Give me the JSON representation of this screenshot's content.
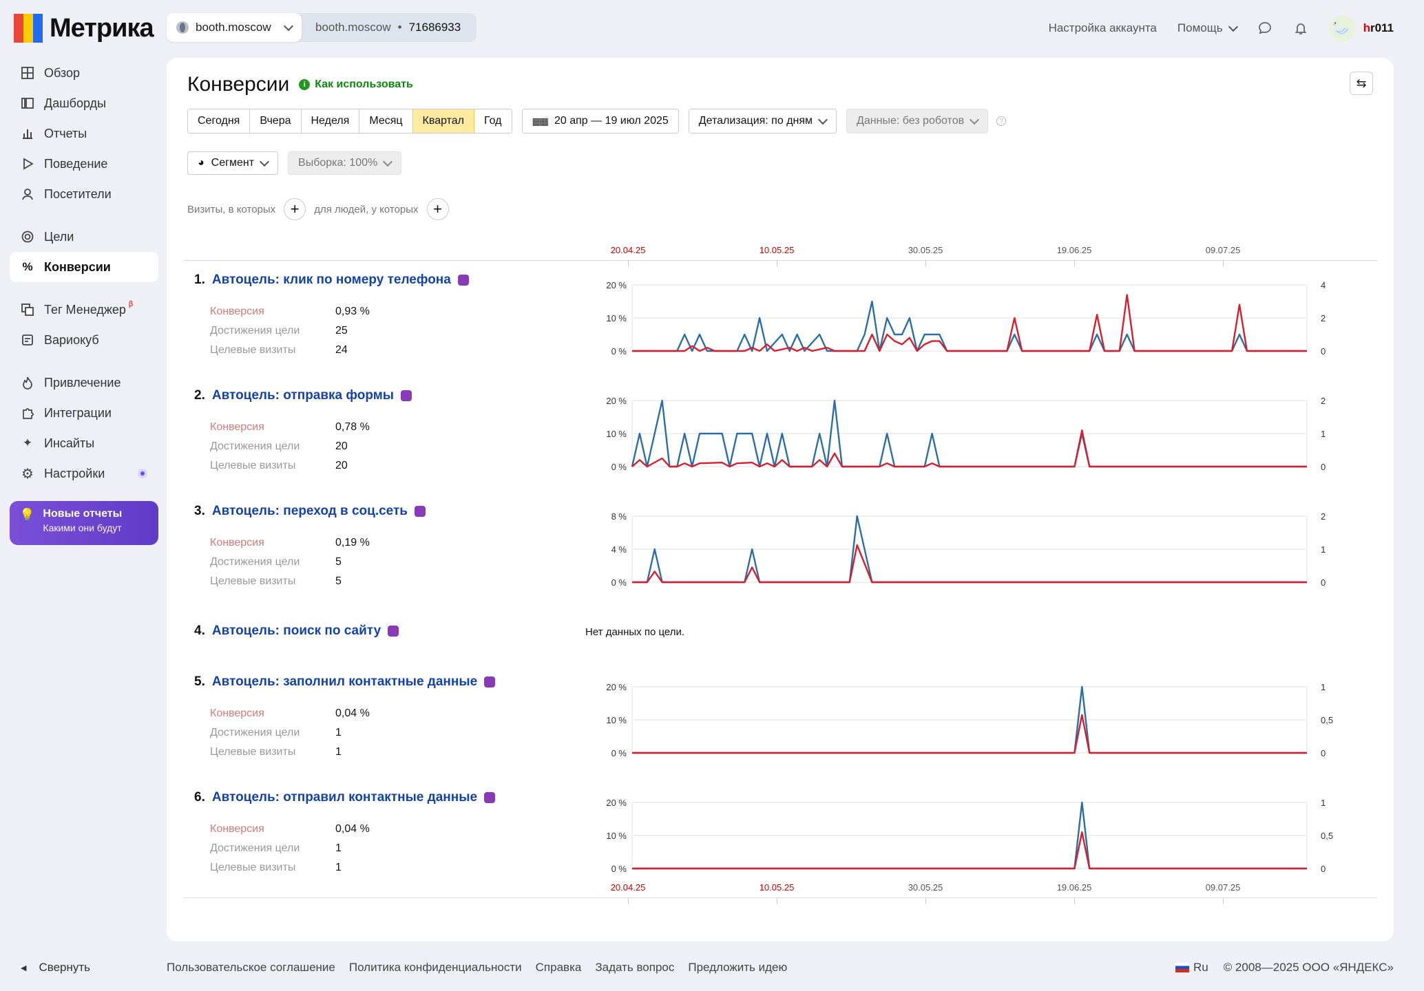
{
  "brand": {
    "logo_text": "Метрика"
  },
  "counter": {
    "selected": "booth.moscow",
    "site": "booth.moscow",
    "separator": "•",
    "id": "71686933"
  },
  "header": {
    "account_settings": "Настройка аккаунта",
    "help": "Помощь",
    "user_prefix": "h",
    "user_rest": "r011"
  },
  "sidebar": {
    "items": [
      {
        "label": "Обзор",
        "icon": "grid-icon"
      },
      {
        "label": "Дашборды",
        "icon": "dashboard-icon"
      },
      {
        "label": "Отчеты",
        "icon": "bar-chart-icon"
      },
      {
        "label": "Поведение",
        "icon": "play-icon"
      },
      {
        "label": "Посетители",
        "icon": "person-icon"
      },
      {
        "label": "Цели",
        "icon": "target-icon"
      },
      {
        "label": "Конверсии",
        "icon": "percent-icon"
      },
      {
        "label": "Тег Менеджер",
        "icon": "tag-manager-icon",
        "badge": "β"
      },
      {
        "label": "Вариокуб",
        "icon": "cube-icon"
      },
      {
        "label": "Привлечение",
        "icon": "fire-icon"
      },
      {
        "label": "Интеграции",
        "icon": "puzzle-icon"
      },
      {
        "label": "Инсайты",
        "icon": "sparkle-icon"
      },
      {
        "label": "Настройки",
        "icon": "gear-icon"
      }
    ],
    "promo": {
      "title": "Новые отчеты",
      "subtitle": "Какими они будут"
    },
    "collapse": "Свернуть"
  },
  "main": {
    "title": "Конверсии",
    "how_to": "Как использовать",
    "periods": [
      "Сегодня",
      "Вчера",
      "Неделя",
      "Месяц",
      "Квартал",
      "Год"
    ],
    "selected_period": "Квартал",
    "date_range": "20 апр — 19 июл 2025",
    "detail": "Детализация: по дням",
    "data_filter": "Данные: без роботов",
    "segment": "Сегмент",
    "sample": "Выборка: 100%",
    "visits_label": "Визиты, в которых",
    "people_label": "для людей, у которых",
    "dates": [
      "20.04.25",
      "10.05.25",
      "30.05.25",
      "19.06.25",
      "09.07.25"
    ],
    "no_data": "Нет данных по цели.",
    "metric_labels": [
      "Конверсия",
      "Достижения цели",
      "Целевые визиты"
    ]
  },
  "colors": {
    "conversion_line": "#d81e2c",
    "visits_line": "#2b6ea6",
    "accent": "#1443a8",
    "selected_period_bg": "#ffeba0"
  },
  "goals": [
    {
      "num": "1.",
      "title": "Автоцель: клик по номеру телефона",
      "icon": "phone-icon",
      "conversion": "0,93 %",
      "achievements": "25",
      "visits": "24",
      "left_ticks": [
        "20 %",
        "10 %",
        "0 %"
      ],
      "right_ticks": [
        "4",
        "2",
        "0"
      ]
    },
    {
      "num": "2.",
      "title": "Автоцель: отправка формы",
      "icon": "form-icon",
      "conversion": "0,78 %",
      "achievements": "20",
      "visits": "20",
      "left_ticks": [
        "20 %",
        "10 %",
        "0 %"
      ],
      "right_ticks": [
        "2",
        "1",
        "0"
      ]
    },
    {
      "num": "3.",
      "title": "Автоцель: переход в соц.сеть",
      "icon": "social-icon",
      "conversion": "0,19 %",
      "achievements": "5",
      "visits": "5",
      "left_ticks": [
        "8 %",
        "4 %",
        "0 %"
      ],
      "right_ticks": [
        "2",
        "1",
        "0"
      ]
    },
    {
      "num": "4.",
      "title": "Автоцель: поиск по сайту",
      "icon": "search-icon"
    },
    {
      "num": "5.",
      "title": "Автоцель: заполнил контактные данные",
      "icon": "contact-icon",
      "conversion": "0,04 %",
      "achievements": "1",
      "visits": "1",
      "left_ticks": [
        "20 %",
        "10 %",
        "0 %"
      ],
      "right_ticks": [
        "1",
        "0,5",
        "0"
      ]
    },
    {
      "num": "6.",
      "title": "Автоцель: отправил контактные данные",
      "icon": "contact-icon",
      "conversion": "0,04 %",
      "achievements": "1",
      "visits": "1",
      "left_ticks": [
        "20 %",
        "10 %",
        "0 %"
      ],
      "right_ticks": [
        "1",
        "0,5",
        "0"
      ]
    }
  ],
  "chart_data": [
    {
      "type": "line",
      "title": "Автоцель: клик по номеру телефона",
      "ylim": [
        0,
        20
      ],
      "y2lim": [
        0,
        4
      ],
      "x_start": "20.04.25",
      "days": 91,
      "series": [
        {
          "name": "Конверсия",
          "axis": "left",
          "points": [
            [
              7,
              0
            ],
            [
              8,
              1.5
            ],
            [
              9,
              0
            ],
            [
              10,
              1
            ],
            [
              11,
              0
            ],
            [
              15,
              0
            ],
            [
              16,
              1
            ],
            [
              17,
              0
            ],
            [
              18,
              2
            ],
            [
              19,
              0
            ],
            [
              21,
              1
            ],
            [
              22,
              0
            ],
            [
              23,
              1
            ],
            [
              24,
              0
            ],
            [
              26,
              1
            ],
            [
              27,
              0
            ],
            [
              31,
              0
            ],
            [
              32,
              5
            ],
            [
              33,
              0
            ],
            [
              34,
              5
            ],
            [
              35,
              3
            ],
            [
              36,
              2
            ],
            [
              37,
              4
            ],
            [
              38,
              0
            ],
            [
              39,
              2
            ],
            [
              40,
              3
            ],
            [
              41,
              3
            ],
            [
              42,
              0
            ],
            [
              50,
              0
            ],
            [
              51,
              10
            ],
            [
              52,
              0
            ],
            [
              61,
              0
            ],
            [
              62,
              11
            ],
            [
              63,
              0
            ],
            [
              65,
              0
            ],
            [
              66,
              17
            ],
            [
              67,
              0
            ],
            [
              80,
              0
            ],
            [
              81,
              14
            ],
            [
              82,
              0
            ]
          ]
        },
        {
          "name": "Целевые визиты",
          "axis": "right",
          "points": [
            [
              6,
              0
            ],
            [
              7,
              1
            ],
            [
              8,
              0
            ],
            [
              9,
              1
            ],
            [
              10,
              0
            ],
            [
              14,
              0
            ],
            [
              15,
              1
            ],
            [
              16,
              0
            ],
            [
              17,
              2
            ],
            [
              18,
              0
            ],
            [
              20,
              1
            ],
            [
              21,
              0
            ],
            [
              22,
              1
            ],
            [
              23,
              0
            ],
            [
              25,
              1
            ],
            [
              26,
              0
            ],
            [
              30,
              0
            ],
            [
              31,
              1
            ],
            [
              32,
              3
            ],
            [
              33,
              0
            ],
            [
              34,
              2
            ],
            [
              35,
              1
            ],
            [
              36,
              1
            ],
            [
              37,
              2
            ],
            [
              38,
              0
            ],
            [
              39,
              1
            ],
            [
              40,
              1
            ],
            [
              41,
              1
            ],
            [
              42,
              0
            ],
            [
              50,
              0
            ],
            [
              51,
              1
            ],
            [
              52,
              0
            ],
            [
              61,
              0
            ],
            [
              62,
              1
            ],
            [
              63,
              0
            ],
            [
              65,
              0
            ],
            [
              66,
              1
            ],
            [
              67,
              0
            ],
            [
              80,
              0
            ],
            [
              81,
              1
            ],
            [
              82,
              0
            ]
          ]
        }
      ]
    },
    {
      "type": "line",
      "title": "Автоцель: отправка формы",
      "ylim": [
        0,
        20
      ],
      "y2lim": [
        0,
        2
      ],
      "x_start": "20.04.25",
      "days": 91,
      "series": [
        {
          "name": "Конверсия",
          "axis": "left",
          "points": [
            [
              0,
              0
            ],
            [
              1,
              2
            ],
            [
              2,
              0
            ],
            [
              4,
              2.5
            ],
            [
              5,
              0
            ],
            [
              6,
              0
            ],
            [
              7,
              1
            ],
            [
              8,
              0
            ],
            [
              9,
              1
            ],
            [
              12,
              1.2
            ],
            [
              13,
              0
            ],
            [
              14,
              1
            ],
            [
              16,
              1.2
            ],
            [
              17,
              0
            ],
            [
              18,
              1
            ],
            [
              19,
              0
            ],
            [
              20,
              2
            ],
            [
              21,
              0
            ],
            [
              24,
              0
            ],
            [
              25,
              2
            ],
            [
              26,
              0
            ],
            [
              27,
              4
            ],
            [
              28,
              0
            ],
            [
              33,
              0
            ],
            [
              34,
              1
            ],
            [
              35,
              0
            ],
            [
              39,
              0
            ],
            [
              40,
              1
            ],
            [
              41,
              0
            ],
            [
              59,
              0
            ],
            [
              60,
              11
            ],
            [
              61,
              0
            ]
          ]
        },
        {
          "name": "Целевые визиты",
          "axis": "right",
          "points": [
            [
              0,
              0
            ],
            [
              1,
              1
            ],
            [
              2,
              0
            ],
            [
              4,
              2
            ],
            [
              5,
              0
            ],
            [
              6,
              0
            ],
            [
              7,
              1
            ],
            [
              8,
              0
            ],
            [
              9,
              1
            ],
            [
              12,
              1
            ],
            [
              13,
              0
            ],
            [
              14,
              1
            ],
            [
              16,
              1
            ],
            [
              17,
              0
            ],
            [
              18,
              1
            ],
            [
              19,
              0
            ],
            [
              20,
              1
            ],
            [
              21,
              0
            ],
            [
              24,
              0
            ],
            [
              25,
              1
            ],
            [
              26,
              0
            ],
            [
              27,
              2
            ],
            [
              28,
              0
            ],
            [
              33,
              0
            ],
            [
              34,
              1
            ],
            [
              35,
              0
            ],
            [
              39,
              0
            ],
            [
              40,
              1
            ],
            [
              41,
              0
            ],
            [
              59,
              0
            ],
            [
              60,
              1
            ],
            [
              61,
              0
            ]
          ]
        }
      ]
    },
    {
      "type": "line",
      "title": "Автоцель: переход в соц.сеть",
      "ylim": [
        0,
        8
      ],
      "y2lim": [
        0,
        2
      ],
      "x_start": "20.04.25",
      "days": 91,
      "series": [
        {
          "name": "Конверсия",
          "axis": "left",
          "points": [
            [
              2,
              0
            ],
            [
              3,
              1.3
            ],
            [
              4,
              0
            ],
            [
              15,
              0
            ],
            [
              16,
              1.8
            ],
            [
              17,
              0
            ],
            [
              29,
              0
            ],
            [
              30,
              4.5
            ],
            [
              32,
              0
            ]
          ]
        },
        {
          "name": "Целевые визиты",
          "axis": "right",
          "points": [
            [
              2,
              0
            ],
            [
              3,
              1
            ],
            [
              4,
              0
            ],
            [
              15,
              0
            ],
            [
              16,
              1
            ],
            [
              17,
              0
            ],
            [
              29,
              0
            ],
            [
              30,
              2
            ],
            [
              32,
              0
            ]
          ]
        }
      ]
    },
    {
      "type": "line",
      "title": "Автоцель: заполнил контактные данные",
      "ylim": [
        0,
        20
      ],
      "y2lim": [
        0,
        1
      ],
      "x_start": "20.04.25",
      "days": 91,
      "series": [
        {
          "name": "Конверсия",
          "axis": "left",
          "points": [
            [
              59,
              0
            ],
            [
              60,
              11.5
            ],
            [
              61,
              0
            ]
          ]
        },
        {
          "name": "Целевые визиты",
          "axis": "right",
          "points": [
            [
              59,
              0
            ],
            [
              60,
              1
            ],
            [
              61,
              0
            ]
          ]
        }
      ]
    },
    {
      "type": "line",
      "title": "Автоцель: отправил контактные данные",
      "ylim": [
        0,
        20
      ],
      "y2lim": [
        0,
        1
      ],
      "x_start": "20.04.25",
      "days": 91,
      "series": [
        {
          "name": "Конверсия",
          "axis": "left",
          "points": [
            [
              59,
              0
            ],
            [
              60,
              11
            ],
            [
              61,
              0
            ]
          ]
        },
        {
          "name": "Целевые визиты",
          "axis": "right",
          "points": [
            [
              59,
              0
            ],
            [
              60,
              1
            ],
            [
              61,
              0
            ]
          ]
        }
      ]
    }
  ],
  "footer": {
    "links": [
      "Пользовательское соглашение",
      "Политика конфиденциальности",
      "Справка",
      "Задать вопрос",
      "Предложить идею"
    ],
    "lang": "Ru",
    "copyright": "© 2008—2025 ООО «ЯНДЕКС»"
  }
}
